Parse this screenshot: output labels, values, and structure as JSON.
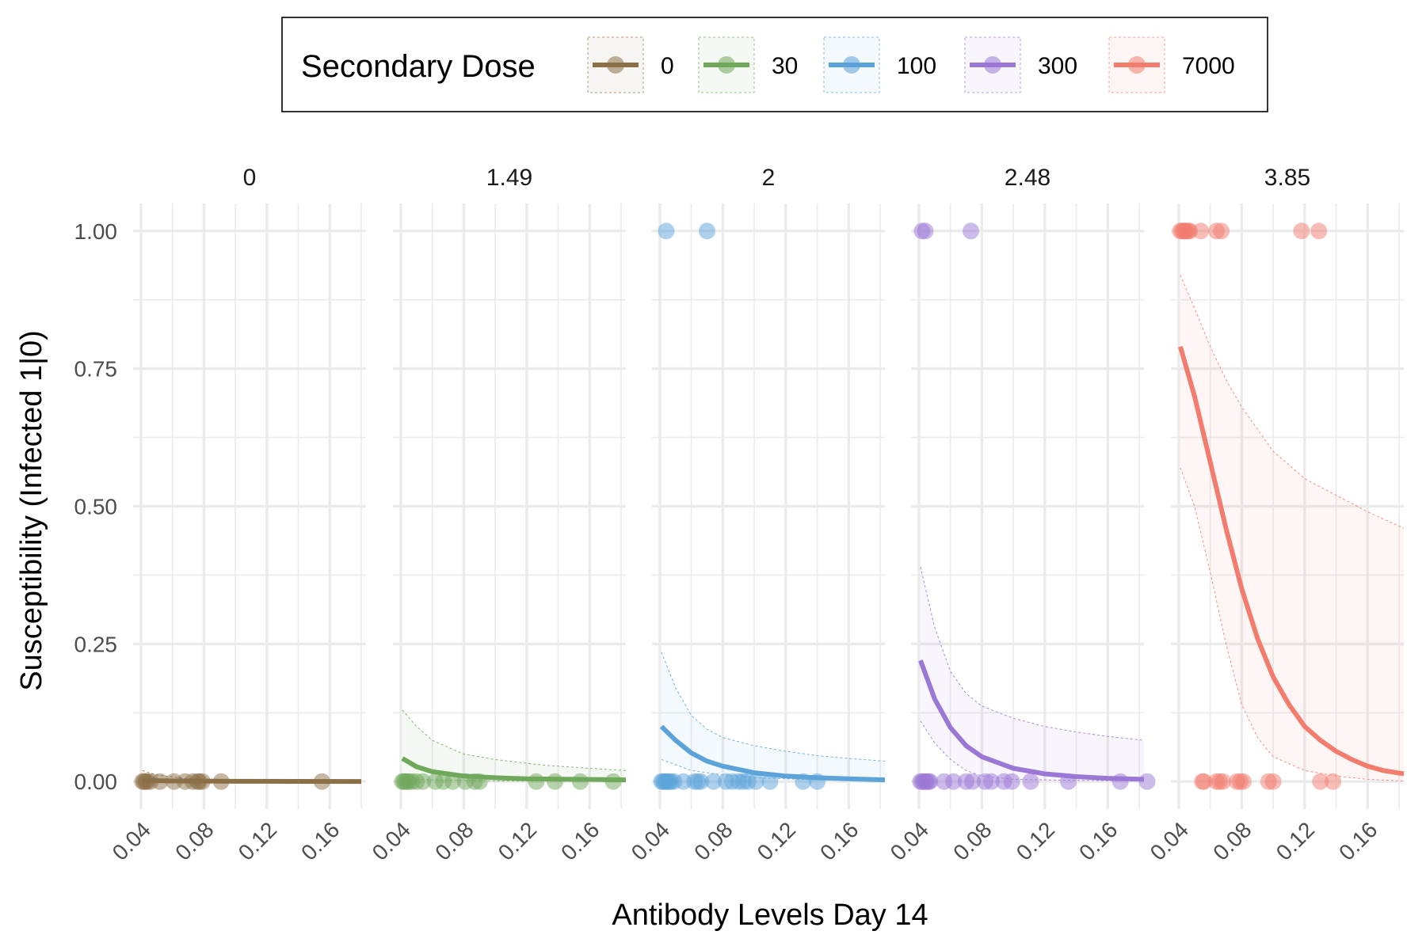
{
  "chart_data": {
    "type": "scatter",
    "xlabel": "Antibody Levels Day 14",
    "ylabel": "Susceptibility (Infected 1|0)",
    "x_ticks": [
      "0.04",
      "0.08",
      "0.12",
      "0.16"
    ],
    "x_tick_values": [
      0.04,
      0.08,
      0.12,
      0.16
    ],
    "y_ticks": [
      "0.00",
      "0.25",
      "0.50",
      "0.75",
      "1.00"
    ],
    "y_tick_values": [
      0,
      0.25,
      0.5,
      0.75,
      1.0
    ],
    "xlim": [
      0.035,
      0.183
    ],
    "ylim": [
      -0.05,
      1.05
    ],
    "grid": true,
    "legend": {
      "title": "Secondary Dose",
      "placement": "top",
      "entries": [
        "0",
        "30",
        "100",
        "300",
        "7000"
      ]
    },
    "panels": [
      {
        "label": "0",
        "color": "#8B6F47",
        "points": [
          [
            0.041,
            0
          ],
          [
            0.042,
            0
          ],
          [
            0.043,
            0
          ],
          [
            0.044,
            0
          ],
          [
            0.046,
            0
          ],
          [
            0.052,
            0
          ],
          [
            0.061,
            0
          ],
          [
            0.068,
            0
          ],
          [
            0.073,
            0
          ],
          [
            0.076,
            0
          ],
          [
            0.077,
            0
          ],
          [
            0.079,
            0
          ],
          [
            0.091,
            0
          ],
          [
            0.155,
            0
          ]
        ],
        "fit": [
          [
            0.041,
            0.002
          ],
          [
            0.06,
            0.001
          ],
          [
            0.1,
            0.0005
          ],
          [
            0.14,
            0.0003
          ],
          [
            0.18,
            0.0002
          ]
        ],
        "ci_low": [
          [
            0.041,
            0.0
          ],
          [
            0.1,
            0.0
          ],
          [
            0.18,
            0.0
          ]
        ],
        "ci_high": [
          [
            0.041,
            0.02
          ],
          [
            0.05,
            0.012
          ],
          [
            0.07,
            0.005
          ],
          [
            0.1,
            0.002
          ],
          [
            0.18,
            0.001
          ]
        ]
      },
      {
        "label": "1.49",
        "color": "#6FA85B",
        "points": [
          [
            0.041,
            0
          ],
          [
            0.042,
            0
          ],
          [
            0.043,
            0
          ],
          [
            0.044,
            0
          ],
          [
            0.045,
            0
          ],
          [
            0.047,
            0
          ],
          [
            0.05,
            0
          ],
          [
            0.054,
            0
          ],
          [
            0.062,
            0
          ],
          [
            0.067,
            0
          ],
          [
            0.073,
            0
          ],
          [
            0.081,
            0
          ],
          [
            0.087,
            0
          ],
          [
            0.09,
            0
          ],
          [
            0.126,
            0
          ],
          [
            0.138,
            0
          ],
          [
            0.154,
            0
          ],
          [
            0.175,
            0
          ]
        ],
        "fit": [
          [
            0.041,
            0.042
          ],
          [
            0.05,
            0.027
          ],
          [
            0.06,
            0.018
          ],
          [
            0.08,
            0.01
          ],
          [
            0.1,
            0.007
          ],
          [
            0.12,
            0.005
          ],
          [
            0.15,
            0.004
          ],
          [
            0.183,
            0.003
          ]
        ],
        "ci_low": [
          [
            0.041,
            0.005
          ],
          [
            0.06,
            0.003
          ],
          [
            0.1,
            0.001
          ],
          [
            0.183,
            0.0
          ]
        ],
        "ci_high": [
          [
            0.041,
            0.13
          ],
          [
            0.05,
            0.1
          ],
          [
            0.06,
            0.075
          ],
          [
            0.08,
            0.05
          ],
          [
            0.1,
            0.04
          ],
          [
            0.13,
            0.03
          ],
          [
            0.16,
            0.024
          ],
          [
            0.183,
            0.02
          ]
        ]
      },
      {
        "label": "2",
        "color": "#5BA3D9",
        "points": [
          [
            0.044,
            1
          ],
          [
            0.07,
            1
          ],
          [
            0.041,
            0
          ],
          [
            0.042,
            0
          ],
          [
            0.043,
            0
          ],
          [
            0.044,
            0
          ],
          [
            0.045,
            0
          ],
          [
            0.046,
            0
          ],
          [
            0.047,
            0
          ],
          [
            0.049,
            0
          ],
          [
            0.055,
            0
          ],
          [
            0.062,
            0
          ],
          [
            0.064,
            0
          ],
          [
            0.066,
            0
          ],
          [
            0.074,
            0
          ],
          [
            0.082,
            0
          ],
          [
            0.086,
            0
          ],
          [
            0.09,
            0
          ],
          [
            0.093,
            0
          ],
          [
            0.096,
            0
          ],
          [
            0.101,
            0
          ],
          [
            0.11,
            0
          ],
          [
            0.131,
            0
          ],
          [
            0.14,
            0
          ]
        ],
        "fit": [
          [
            0.041,
            0.1
          ],
          [
            0.05,
            0.075
          ],
          [
            0.06,
            0.052
          ],
          [
            0.07,
            0.037
          ],
          [
            0.08,
            0.028
          ],
          [
            0.1,
            0.016
          ],
          [
            0.12,
            0.01
          ],
          [
            0.14,
            0.007
          ],
          [
            0.16,
            0.005
          ],
          [
            0.183,
            0.003
          ]
        ],
        "ci_low": [
          [
            0.041,
            0.04
          ],
          [
            0.06,
            0.02
          ],
          [
            0.08,
            0.012
          ],
          [
            0.1,
            0.007
          ],
          [
            0.14,
            0.003
          ],
          [
            0.183,
            0.001
          ]
        ],
        "ci_high": [
          [
            0.041,
            0.235
          ],
          [
            0.05,
            0.17
          ],
          [
            0.06,
            0.12
          ],
          [
            0.07,
            0.095
          ],
          [
            0.08,
            0.08
          ],
          [
            0.1,
            0.065
          ],
          [
            0.12,
            0.055
          ],
          [
            0.14,
            0.047
          ],
          [
            0.16,
            0.042
          ],
          [
            0.183,
            0.037
          ]
        ]
      },
      {
        "label": "2.48",
        "color": "#9B77D6",
        "points": [
          [
            0.042,
            1
          ],
          [
            0.044,
            1
          ],
          [
            0.073,
            1
          ],
          [
            0.041,
            0
          ],
          [
            0.042,
            0
          ],
          [
            0.043,
            0
          ],
          [
            0.044,
            0
          ],
          [
            0.045,
            0
          ],
          [
            0.046,
            0
          ],
          [
            0.047,
            0
          ],
          [
            0.056,
            0
          ],
          [
            0.062,
            0
          ],
          [
            0.07,
            0
          ],
          [
            0.074,
            0
          ],
          [
            0.082,
            0
          ],
          [
            0.086,
            0
          ],
          [
            0.094,
            0
          ],
          [
            0.099,
            0
          ],
          [
            0.111,
            0
          ],
          [
            0.135,
            0
          ],
          [
            0.168,
            0
          ],
          [
            0.185,
            0
          ]
        ],
        "fit": [
          [
            0.041,
            0.22
          ],
          [
            0.05,
            0.15
          ],
          [
            0.06,
            0.098
          ],
          [
            0.07,
            0.065
          ],
          [
            0.08,
            0.045
          ],
          [
            0.1,
            0.024
          ],
          [
            0.12,
            0.014
          ],
          [
            0.14,
            0.009
          ],
          [
            0.16,
            0.006
          ],
          [
            0.183,
            0.004
          ]
        ],
        "ci_low": [
          [
            0.041,
            0.11
          ],
          [
            0.05,
            0.07
          ],
          [
            0.06,
            0.04
          ],
          [
            0.07,
            0.02
          ],
          [
            0.08,
            0.01
          ],
          [
            0.1,
            0.004
          ],
          [
            0.14,
            0.002
          ],
          [
            0.183,
            0.001
          ]
        ],
        "ci_high": [
          [
            0.041,
            0.39
          ],
          [
            0.05,
            0.28
          ],
          [
            0.06,
            0.2
          ],
          [
            0.07,
            0.16
          ],
          [
            0.08,
            0.137
          ],
          [
            0.1,
            0.115
          ],
          [
            0.12,
            0.1
          ],
          [
            0.14,
            0.09
          ],
          [
            0.16,
            0.082
          ],
          [
            0.183,
            0.075
          ]
        ]
      },
      {
        "label": "3.85",
        "color": "#F27C6E",
        "points": [
          [
            0.041,
            1
          ],
          [
            0.042,
            1
          ],
          [
            0.043,
            1
          ],
          [
            0.044,
            1
          ],
          [
            0.045,
            1
          ],
          [
            0.046,
            1
          ],
          [
            0.047,
            1
          ],
          [
            0.054,
            1
          ],
          [
            0.064,
            1
          ],
          [
            0.067,
            1
          ],
          [
            0.118,
            1
          ],
          [
            0.129,
            1
          ],
          [
            0.055,
            0
          ],
          [
            0.056,
            0
          ],
          [
            0.064,
            0
          ],
          [
            0.066,
            0
          ],
          [
            0.068,
            0
          ],
          [
            0.077,
            0
          ],
          [
            0.079,
            0
          ],
          [
            0.081,
            0
          ],
          [
            0.097,
            0
          ],
          [
            0.1,
            0
          ],
          [
            0.13,
            0
          ],
          [
            0.138,
            0
          ]
        ],
        "fit": [
          [
            0.041,
            0.79
          ],
          [
            0.05,
            0.7
          ],
          [
            0.06,
            0.58
          ],
          [
            0.07,
            0.46
          ],
          [
            0.08,
            0.35
          ],
          [
            0.09,
            0.26
          ],
          [
            0.1,
            0.19
          ],
          [
            0.11,
            0.14
          ],
          [
            0.12,
            0.1
          ],
          [
            0.13,
            0.075
          ],
          [
            0.14,
            0.055
          ],
          [
            0.15,
            0.04
          ],
          [
            0.16,
            0.028
          ],
          [
            0.17,
            0.02
          ],
          [
            0.183,
            0.014
          ]
        ],
        "ci_low": [
          [
            0.041,
            0.57
          ],
          [
            0.05,
            0.5
          ],
          [
            0.06,
            0.38
          ],
          [
            0.07,
            0.25
          ],
          [
            0.08,
            0.14
          ],
          [
            0.09,
            0.08
          ],
          [
            0.1,
            0.045
          ],
          [
            0.12,
            0.02
          ],
          [
            0.14,
            0.01
          ],
          [
            0.16,
            0.004
          ],
          [
            0.183,
            0.001
          ]
        ],
        "ci_high": [
          [
            0.041,
            0.92
          ],
          [
            0.05,
            0.86
          ],
          [
            0.06,
            0.79
          ],
          [
            0.07,
            0.73
          ],
          [
            0.08,
            0.68
          ],
          [
            0.09,
            0.64
          ],
          [
            0.1,
            0.6
          ],
          [
            0.12,
            0.55
          ],
          [
            0.14,
            0.52
          ],
          [
            0.16,
            0.49
          ],
          [
            0.183,
            0.46
          ]
        ]
      }
    ]
  }
}
